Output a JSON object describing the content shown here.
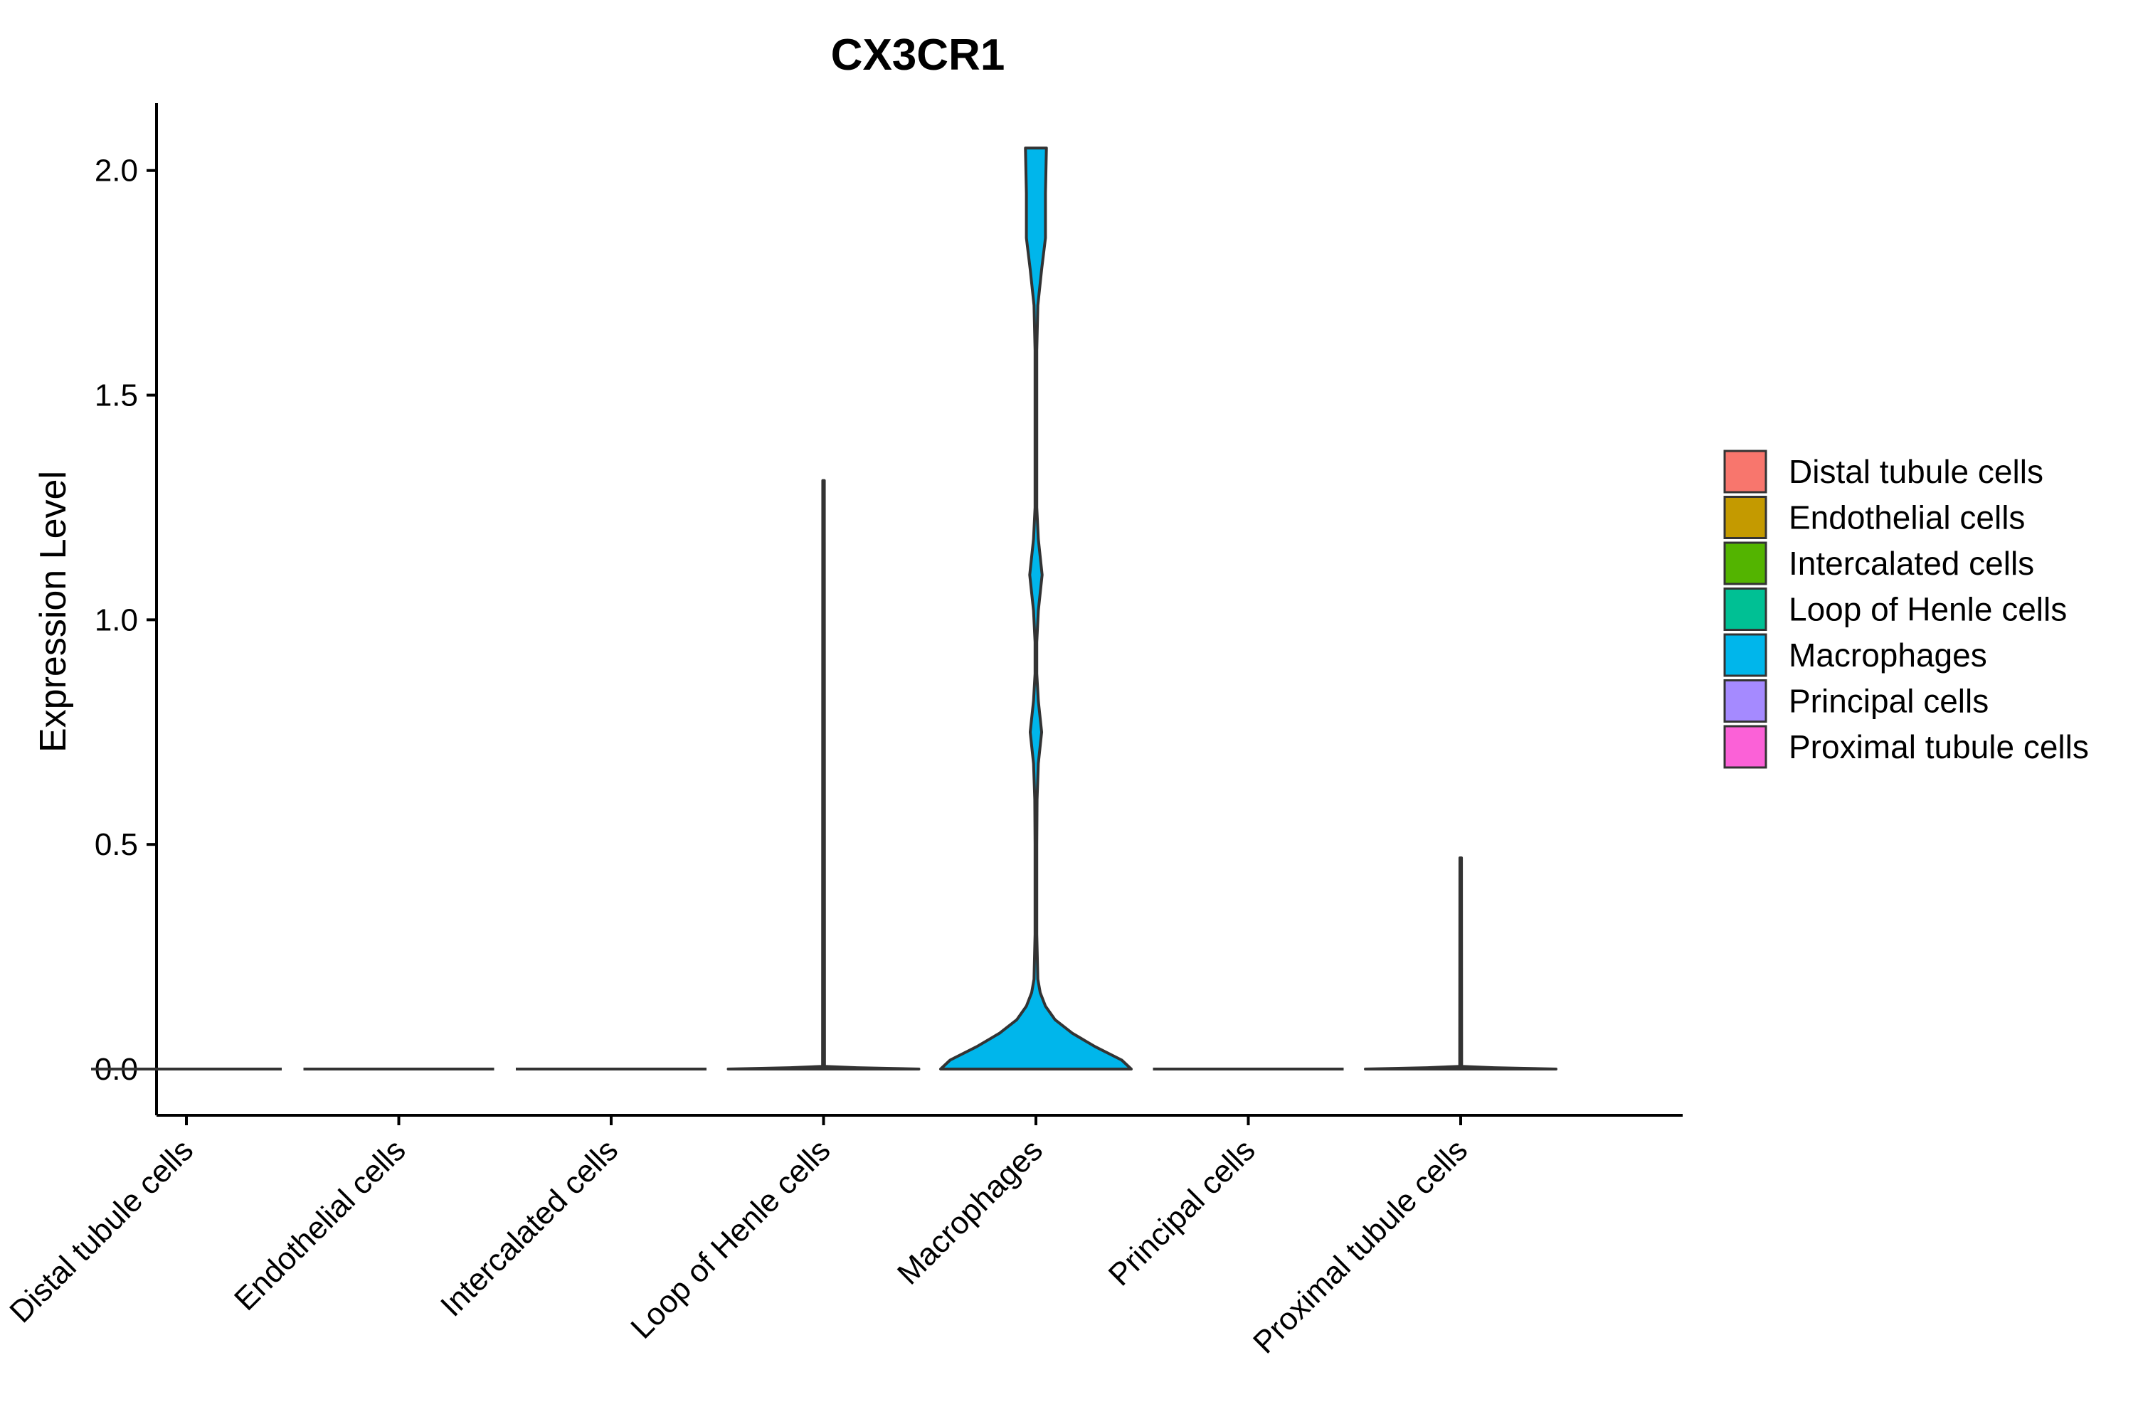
{
  "chart_data": {
    "type": "violin",
    "title": "CX3CR1",
    "ylabel": "Expression Level",
    "xlabel": "",
    "ylim": [
      -0.1,
      2.15
    ],
    "yticks": [
      0.0,
      0.5,
      1.0,
      1.5,
      2.0
    ],
    "ytick_labels": [
      "0.0",
      "0.5",
      "1.0",
      "1.5",
      "2.0"
    ],
    "grid": false,
    "legend_position": "right",
    "categories": [
      "Distal tubule cells",
      "Endothelial cells",
      "Intercalated cells",
      "Loop of Henle cells",
      "Macrophages",
      "Principal cells",
      "Proximal tubule cells"
    ],
    "colors": [
      "#F8766D",
      "#C49A00",
      "#53B400",
      "#00C094",
      "#00B6EB",
      "#A58AFF",
      "#FB61D7"
    ],
    "series": [
      {
        "category": "Distal tubule cells",
        "max": 0.0,
        "profile": [
          [
            0.0,
            1.0
          ]
        ]
      },
      {
        "category": "Endothelial cells",
        "max": 0.0,
        "profile": [
          [
            0.0,
            1.0
          ]
        ]
      },
      {
        "category": "Intercalated cells",
        "max": 0.0,
        "profile": [
          [
            0.0,
            1.0
          ]
        ]
      },
      {
        "category": "Loop of Henle cells",
        "max": 1.31,
        "profile": [
          [
            0.0,
            1.0
          ],
          [
            0.003,
            0.35
          ],
          [
            0.006,
            0.01
          ],
          [
            1.31,
            0.008
          ]
        ]
      },
      {
        "category": "Macrophages",
        "max": 2.05,
        "profile": [
          [
            0.0,
            1.0
          ],
          [
            0.02,
            0.9
          ],
          [
            0.05,
            0.62
          ],
          [
            0.08,
            0.38
          ],
          [
            0.11,
            0.2
          ],
          [
            0.14,
            0.1
          ],
          [
            0.17,
            0.045
          ],
          [
            0.2,
            0.02
          ],
          [
            0.3,
            0.009
          ],
          [
            0.5,
            0.009
          ],
          [
            0.6,
            0.012
          ],
          [
            0.68,
            0.025
          ],
          [
            0.75,
            0.06
          ],
          [
            0.82,
            0.025
          ],
          [
            0.88,
            0.009
          ],
          [
            0.95,
            0.009
          ],
          [
            1.02,
            0.025
          ],
          [
            1.1,
            0.065
          ],
          [
            1.18,
            0.025
          ],
          [
            1.25,
            0.009
          ],
          [
            1.6,
            0.009
          ],
          [
            1.7,
            0.02
          ],
          [
            1.78,
            0.06
          ],
          [
            1.85,
            0.1
          ],
          [
            1.95,
            0.1
          ],
          [
            2.05,
            0.11
          ]
        ]
      },
      {
        "category": "Principal cells",
        "max": 0.0,
        "profile": [
          [
            0.0,
            1.0
          ]
        ]
      },
      {
        "category": "Proximal tubule cells",
        "max": 0.47,
        "profile": [
          [
            0.0,
            1.0
          ],
          [
            0.003,
            0.35
          ],
          [
            0.006,
            0.01
          ],
          [
            0.47,
            0.008
          ]
        ]
      }
    ]
  }
}
